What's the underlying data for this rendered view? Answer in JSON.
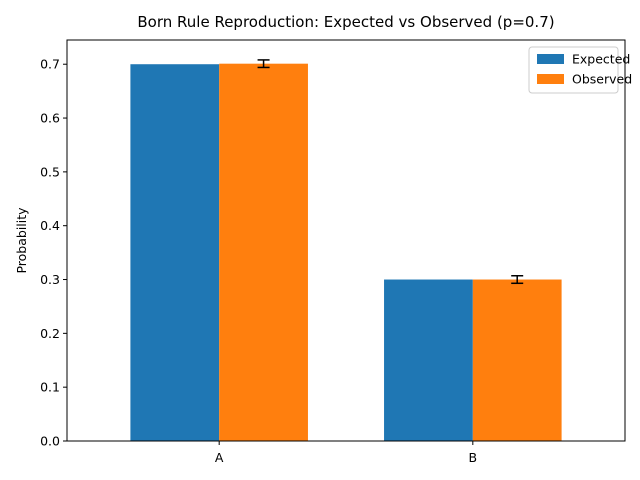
{
  "chart_data": {
    "type": "bar",
    "title": "Born Rule Reproduction: Expected vs Observed (p=0.7)",
    "xlabel": "",
    "ylabel": "Probability",
    "categories": [
      "A",
      "B"
    ],
    "series": [
      {
        "name": "Expected",
        "values": [
          0.7,
          0.3
        ],
        "color": "#1f77b4"
      },
      {
        "name": "Observed",
        "values": [
          0.701,
          0.3
        ],
        "errors": [
          0.007,
          0.007
        ],
        "color": "#ff7f0e"
      }
    ],
    "ylim": [
      0,
      0.745
    ],
    "yticks": [
      "0.0",
      "0.1",
      "0.2",
      "0.3",
      "0.4",
      "0.5",
      "0.6",
      "0.7"
    ],
    "grid": false,
    "legend": "top-right"
  }
}
